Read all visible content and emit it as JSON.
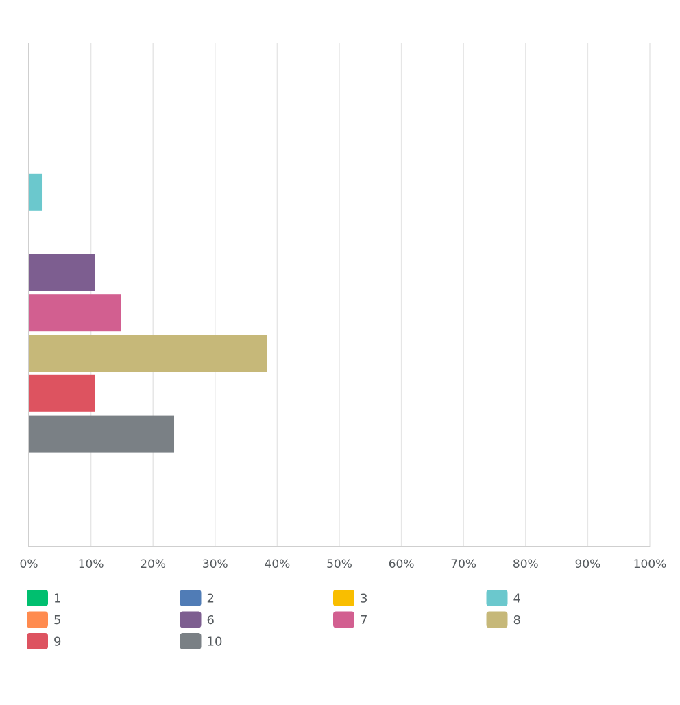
{
  "chart_data": {
    "type": "bar",
    "orientation": "horizontal",
    "categories": [
      "1",
      "2",
      "3",
      "4",
      "5",
      "6",
      "7",
      "8",
      "9",
      "10"
    ],
    "values": [
      0,
      0,
      0,
      2.1,
      0,
      10.6,
      14.9,
      38.3,
      10.6,
      23.4
    ],
    "colors": [
      "#00bf6f",
      "#507cb6",
      "#f9be00",
      "#6bc8cd",
      "#ff8b4f",
      "#7d5e90",
      "#d25f90",
      "#c6b879",
      "#dd5360",
      "#7a8085"
    ],
    "xlim": [
      0,
      100
    ],
    "xticks": [
      "0%",
      "10%",
      "20%",
      "30%",
      "40%",
      "50%",
      "60%",
      "70%",
      "80%",
      "90%",
      "100%"
    ],
    "grid": true,
    "legend_position": "bottom",
    "title": "",
    "xlabel": "",
    "ylabel": ""
  }
}
